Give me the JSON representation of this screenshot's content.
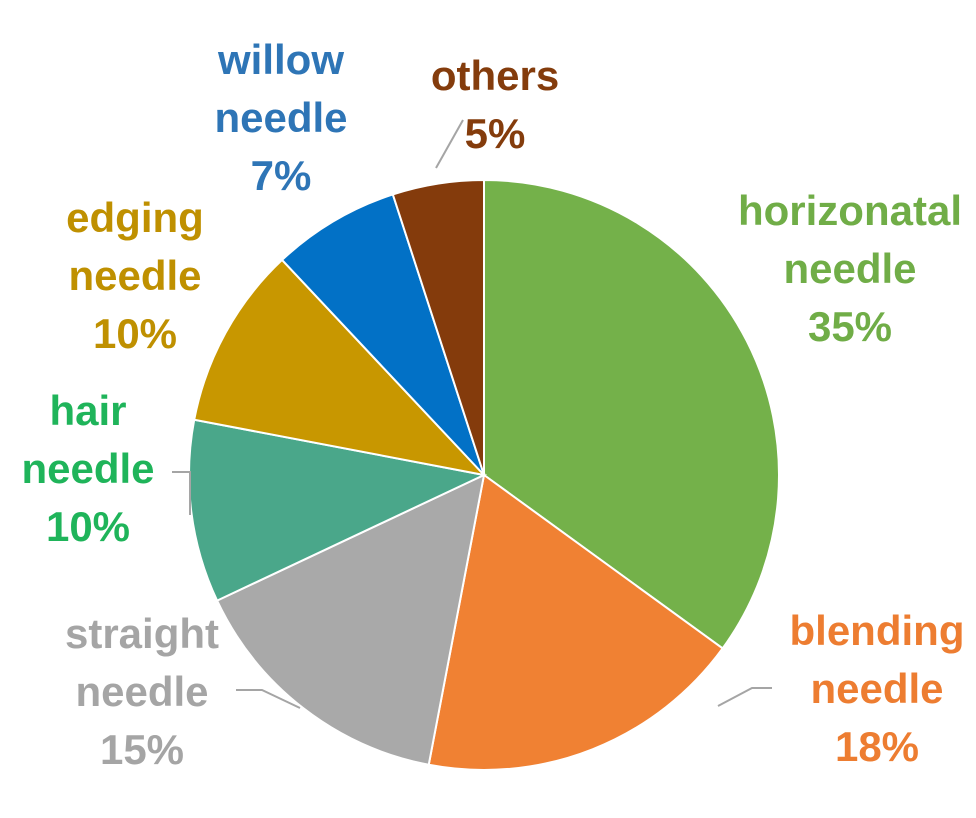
{
  "chart_data": {
    "type": "pie",
    "title": "",
    "slices": [
      {
        "name_lines": [
          "horizonatal",
          "needle"
        ],
        "pct_label": "35%",
        "value": 35,
        "color": "#74B14A",
        "label_color": "#70AD47"
      },
      {
        "name_lines": [
          "blending",
          "needle"
        ],
        "pct_label": "18%",
        "value": 18,
        "color": "#F08133",
        "label_color": "#ED7D31"
      },
      {
        "name_lines": [
          "straight",
          "needle"
        ],
        "pct_label": "15%",
        "value": 15,
        "color": "#A9A9A9",
        "label_color": "#A5A5A5"
      },
      {
        "name_lines": [
          "hair",
          "needle"
        ],
        "pct_label": "10%",
        "value": 10,
        "color": "#4AA78A",
        "label_color": "#1FB45A"
      },
      {
        "name_lines": [
          "edging",
          "needle"
        ],
        "pct_label": "10%",
        "value": 10,
        "color": "#C89700",
        "label_color": "#BF9000"
      },
      {
        "name_lines": [
          "willow",
          "needle"
        ],
        "pct_label": "7%",
        "value": 7,
        "color": "#0271C6",
        "label_color": "#2E75B6"
      },
      {
        "name_lines": [
          "others"
        ],
        "pct_label": "5%",
        "value": 5,
        "color": "#843B0C",
        "label_color": "#843C0C"
      }
    ],
    "start_angle": "12 o'clock",
    "direction": "clockwise",
    "leader_line_color": "#A5A5A5",
    "legend": "none"
  }
}
